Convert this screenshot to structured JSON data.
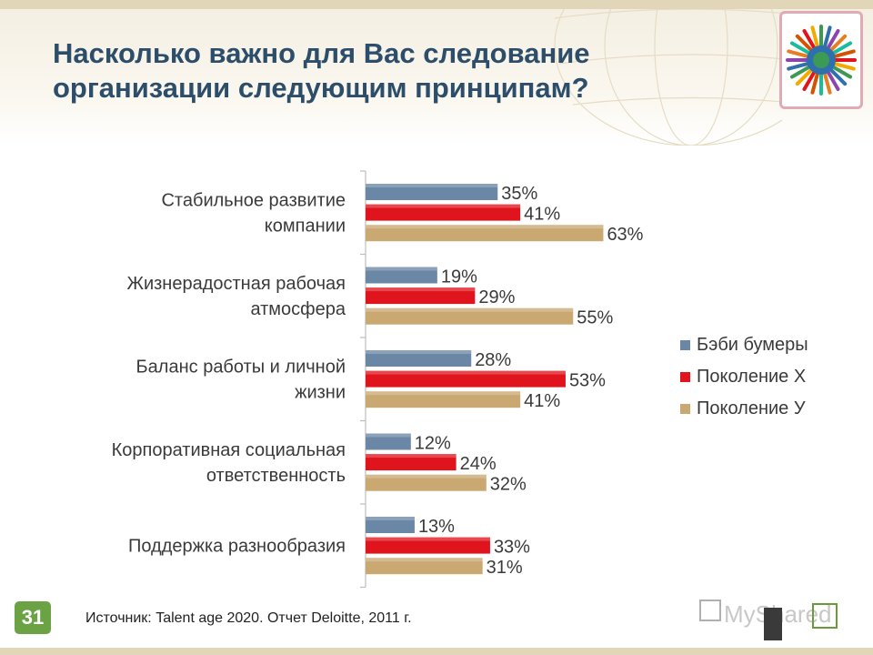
{
  "title": "Насколько важно для Вас следование организации следующим принципам?",
  "chart_data": {
    "type": "bar",
    "orientation": "horizontal",
    "categories": [
      [
        "Стабильное развитие",
        "компании"
      ],
      [
        "Жизнерадостная рабочая",
        "атмосфера"
      ],
      [
        "Баланс работы и личной",
        "жизни"
      ],
      [
        "Корпоративная социальная",
        "ответственность"
      ],
      [
        "Поддержка разнообразия"
      ]
    ],
    "series": [
      {
        "name": "Бэби бумеры",
        "values": [
          35,
          19,
          28,
          12,
          13
        ],
        "labels": [
          "35%",
          "19%",
          "28%",
          "12%",
          "13%"
        ],
        "color": "#6b87a6"
      },
      {
        "name": "Поколение Х",
        "values": [
          41,
          29,
          53,
          24,
          33
        ],
        "labels": [
          "41%",
          "29%",
          "53%",
          "24%",
          "33%"
        ],
        "color": "#e0141c"
      },
      {
        "name": "Поколение У",
        "values": [
          63,
          55,
          41,
          32,
          31
        ],
        "labels": [
          "63%",
          "55%",
          "41%",
          "32%",
          "31%"
        ],
        "color": "#c9a872"
      }
    ],
    "xlim": [
      0,
      100
    ],
    "legend_position": "right",
    "grid": false
  },
  "slide_number": "31",
  "source": "Источник: Talent age 2020. Отчет  Deloitte, 2011 г.",
  "watermark_text": "MyShared"
}
